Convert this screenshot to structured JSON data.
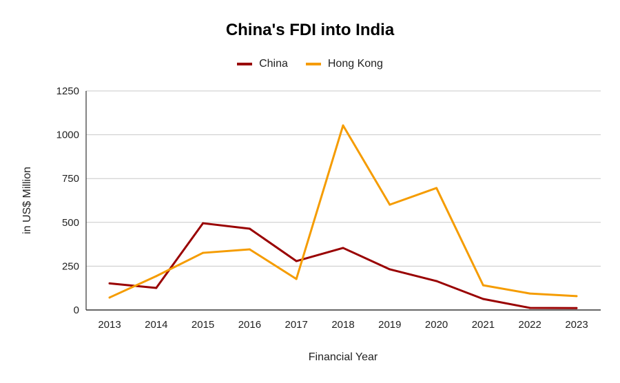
{
  "chart_data": {
    "type": "line",
    "title": "China's FDI into India",
    "xlabel": "Financial Year",
    "ylabel": "in US$ Million",
    "categories": [
      "2013",
      "2014",
      "2015",
      "2016",
      "2017",
      "2018",
      "2019",
      "2020",
      "2021",
      "2022",
      "2023"
    ],
    "ylim": [
      0,
      1250
    ],
    "yticks": [
      "0",
      "250",
      "500",
      "750",
      "1000",
      "1250"
    ],
    "grid": true,
    "legend_position": "top",
    "series": [
      {
        "name": "China",
        "color": "#990000",
        "values": [
          152,
          126,
          495,
          464,
          279,
          354,
          232,
          165,
          63,
          12,
          11
        ]
      },
      {
        "name": "Hong Kong",
        "color": "#f59c00",
        "values": [
          71,
          193,
          326,
          346,
          177,
          1053,
          601,
          696,
          141,
          94,
          79
        ]
      }
    ]
  }
}
